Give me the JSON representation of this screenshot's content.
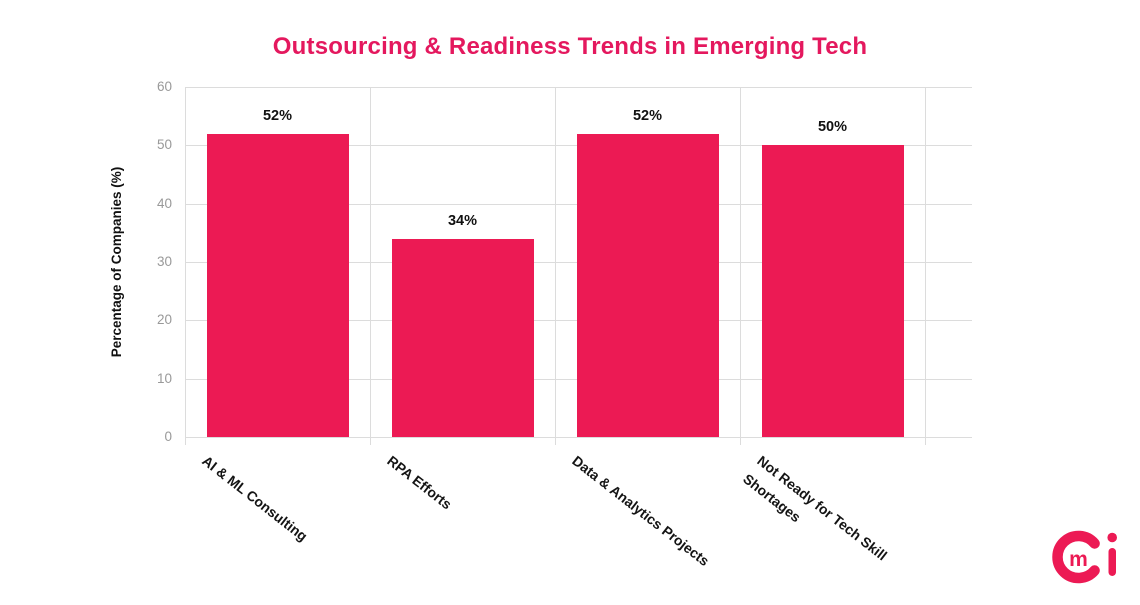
{
  "chart_data": {
    "type": "bar",
    "title": "Outsourcing & Readiness Trends in Emerging Tech",
    "title_color": "#E4185E",
    "categories": [
      "AI & ML Consulting",
      "RPA Efforts",
      "Data & Analytics Projects",
      "Not Ready for Tech Skill Shortages"
    ],
    "tick_labels": [
      "AI & ML Consulting",
      "RPA Efforts",
      "Data & Analytics Projects",
      "Not Ready for Tech Skill\nShortages"
    ],
    "values": [
      52,
      34,
      52,
      50
    ],
    "value_labels": [
      "52%",
      "34%",
      "52%",
      "50%"
    ],
    "xlabel": "",
    "ylabel": "Percentage of Companies (%)",
    "ylim": [
      0,
      60
    ],
    "yticks": [
      0,
      10,
      20,
      30,
      40,
      50,
      60
    ],
    "grid": true,
    "legend_position": "none",
    "bar_color": "#EC1A54",
    "grid_color": "#DCDCDC",
    "tick_color": "#999999",
    "label_color": "#141414"
  },
  "logo": {
    "name": "cmi",
    "color": "#EC1A54",
    "m": "m"
  }
}
